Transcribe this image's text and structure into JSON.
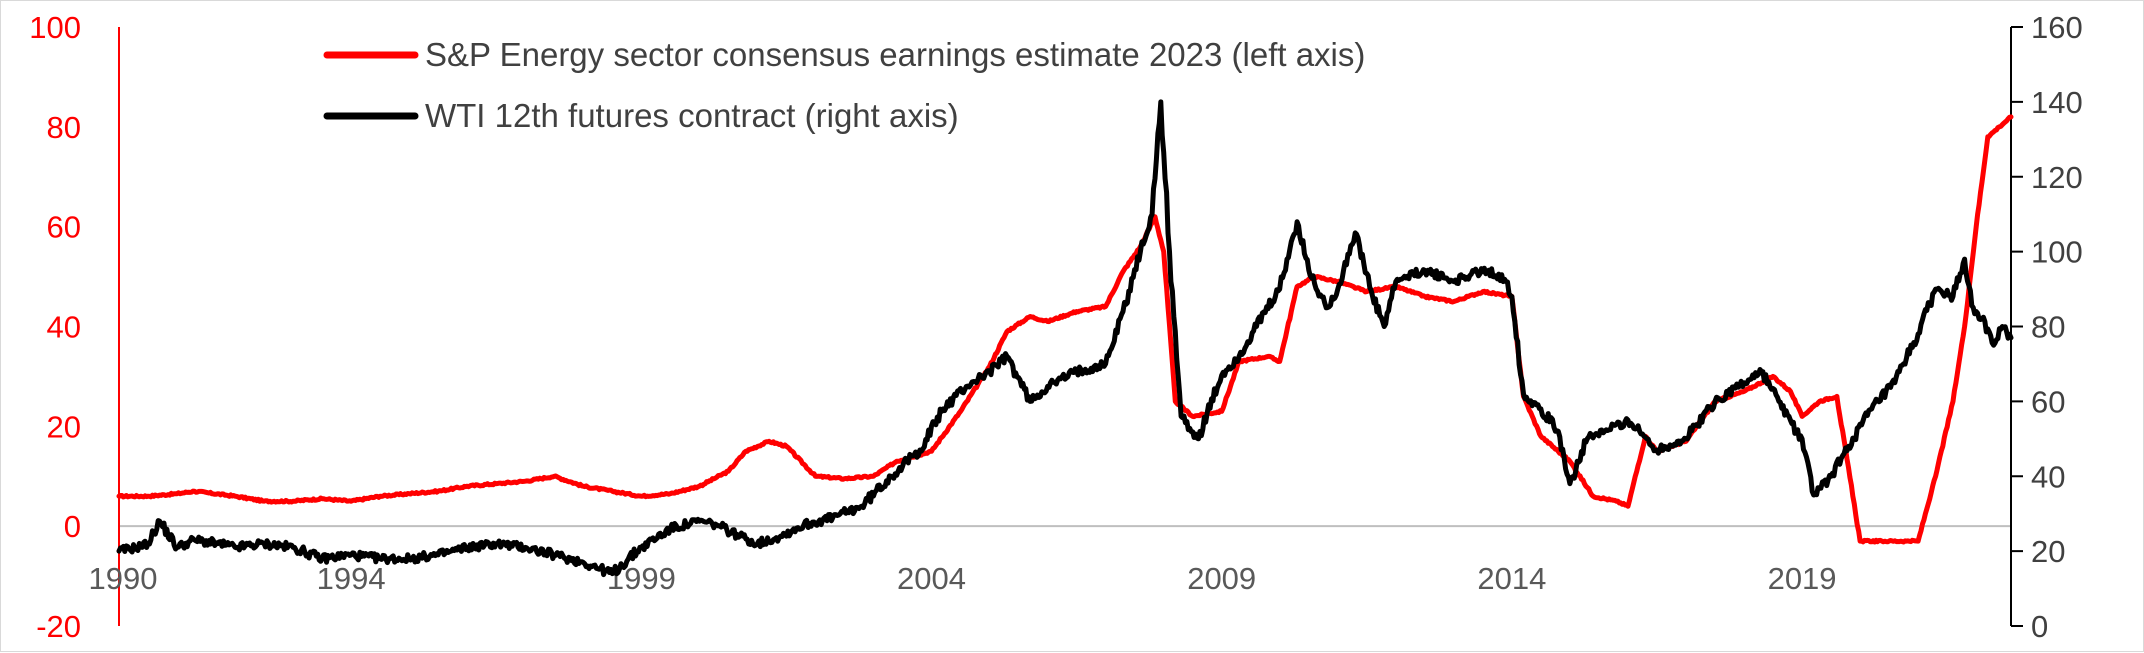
{
  "chart_data": {
    "type": "line",
    "title": "",
    "legend_position": "top",
    "gridlines": false,
    "x_axis": {
      "tick_labels": [
        "1990",
        "1994",
        "1999",
        "2004",
        "2009",
        "2014",
        "2019"
      ],
      "range": [
        1990.0,
        2022.6
      ]
    },
    "y_left": {
      "range": [
        -20,
        100
      ],
      "ticks": [
        -20,
        0,
        20,
        40,
        60,
        80,
        100
      ],
      "color": "#ff0000"
    },
    "y_right": {
      "range": [
        0,
        160
      ],
      "ticks": [
        0,
        20,
        40,
        60,
        80,
        100,
        120,
        140,
        160
      ],
      "color": "#000000"
    },
    "series": [
      {
        "name": "S&P Energy sector consensus earnings estimate 2023 (left axis)",
        "axis": "left",
        "color": "#ff0000",
        "x": [
          1990.0,
          1990.5,
          1991.0,
          1991.3,
          1992.0,
          1992.5,
          1993.0,
          1993.5,
          1994.0,
          1994.5,
          1995.0,
          1995.5,
          1996.0,
          1996.5,
          1997.0,
          1997.5,
          1998.0,
          1998.5,
          1999.0,
          1999.5,
          2000.0,
          2000.5,
          2000.8,
          2001.2,
          2001.5,
          2002.0,
          2002.5,
          2003.0,
          2003.4,
          2004.0,
          2004.5,
          2005.0,
          2005.3,
          2005.7,
          2006.0,
          2006.5,
          2007.0,
          2007.3,
          2007.6,
          2007.85,
          2008.0,
          2008.2,
          2008.5,
          2009.0,
          2009.3,
          2009.8,
          2010.0,
          2010.3,
          2010.6,
          2011.0,
          2011.5,
          2012.0,
          2012.5,
          2013.0,
          2013.5,
          2014.0,
          2014.2,
          2014.5,
          2015.0,
          2015.4,
          2015.8,
          2016.0,
          2016.3,
          2016.5,
          2017.0,
          2017.5,
          2018.0,
          2018.5,
          2018.8,
          2019.0,
          2019.3,
          2019.6,
          2020.0,
          2020.5,
          2020.8,
          2021.0,
          2021.3,
          2021.6,
          2021.8,
          2022.0,
          2022.2,
          2022.4,
          2022.6
        ],
        "values": [
          6,
          6,
          6.5,
          7,
          6,
          5,
          5,
          5.5,
          5,
          6,
          6.5,
          7,
          8,
          8.5,
          9,
          10,
          8,
          7,
          6,
          6.5,
          8,
          11,
          15,
          17,
          16,
          10,
          9.5,
          10,
          13,
          15,
          23,
          32,
          39,
          42,
          41,
          43,
          44,
          51,
          56,
          62,
          55,
          25,
          22,
          23,
          33,
          34,
          33,
          48,
          50,
          49,
          47,
          48,
          46,
          45,
          47,
          46,
          26,
          18,
          13,
          6,
          5,
          4,
          18,
          15,
          17,
          25,
          27,
          30,
          27,
          22,
          25,
          26,
          -3,
          -3,
          -3,
          -3,
          10,
          25,
          40,
          60,
          78,
          80,
          82
        ]
      },
      {
        "name": "WTI 12th futures contract (right axis)",
        "axis": "right",
        "color": "#000000",
        "x": [
          1990.0,
          1990.3,
          1990.5,
          1990.7,
          1991.0,
          1991.3,
          1991.7,
          1992.0,
          1992.5,
          1993.0,
          1993.5,
          1994.0,
          1994.5,
          1995.0,
          1995.5,
          1996.0,
          1996.5,
          1997.0,
          1997.5,
          1998.0,
          1998.5,
          1999.0,
          1999.5,
          2000.0,
          2000.3,
          2000.7,
          2001.0,
          2001.4,
          2001.8,
          2002.3,
          2002.8,
          2003.3,
          2003.8,
          2004.2,
          2004.6,
          2005.0,
          2005.3,
          2005.7,
          2006.0,
          2006.5,
          2007.0,
          2007.3,
          2007.6,
          2007.8,
          2007.95,
          2008.1,
          2008.3,
          2008.6,
          2009.0,
          2009.3,
          2009.6,
          2010.0,
          2010.3,
          2010.5,
          2010.8,
          2011.0,
          2011.3,
          2011.6,
          2011.8,
          2012.0,
          2012.5,
          2013.0,
          2013.3,
          2013.6,
          2013.9,
          2014.0,
          2014.2,
          2014.5,
          2014.8,
          2015.0,
          2015.3,
          2015.6,
          2016.0,
          2016.5,
          2017.0,
          2017.5,
          2018.0,
          2018.3,
          2018.6,
          2018.9,
          2019.0,
          2019.2,
          2019.5,
          2019.8,
          2020.2,
          2020.6,
          2021.0,
          2021.3,
          2021.6,
          2021.8,
          2021.95,
          2022.1,
          2022.3,
          2022.45,
          2022.6
        ],
        "values": [
          20,
          21,
          22,
          28,
          21,
          23,
          22,
          21,
          22,
          21,
          18,
          19,
          18,
          18,
          19,
          21,
          22,
          21,
          19,
          17,
          14,
          21,
          26,
          28,
          27,
          24,
          22,
          24,
          27,
          29,
          32,
          40,
          47,
          58,
          64,
          68,
          72,
          60,
          64,
          68,
          70,
          84,
          100,
          110,
          140,
          100,
          56,
          50,
          67,
          72,
          80,
          90,
          108,
          95,
          85,
          90,
          105,
          88,
          80,
          92,
          95,
          92,
          94,
          95,
          92,
          88,
          62,
          58,
          52,
          38,
          50,
          52,
          55,
          47,
          50,
          60,
          65,
          68,
          60,
          52,
          50,
          35,
          40,
          48,
          58,
          65,
          78,
          90,
          88,
          98,
          85,
          82,
          75,
          80,
          77
        ]
      }
    ]
  }
}
